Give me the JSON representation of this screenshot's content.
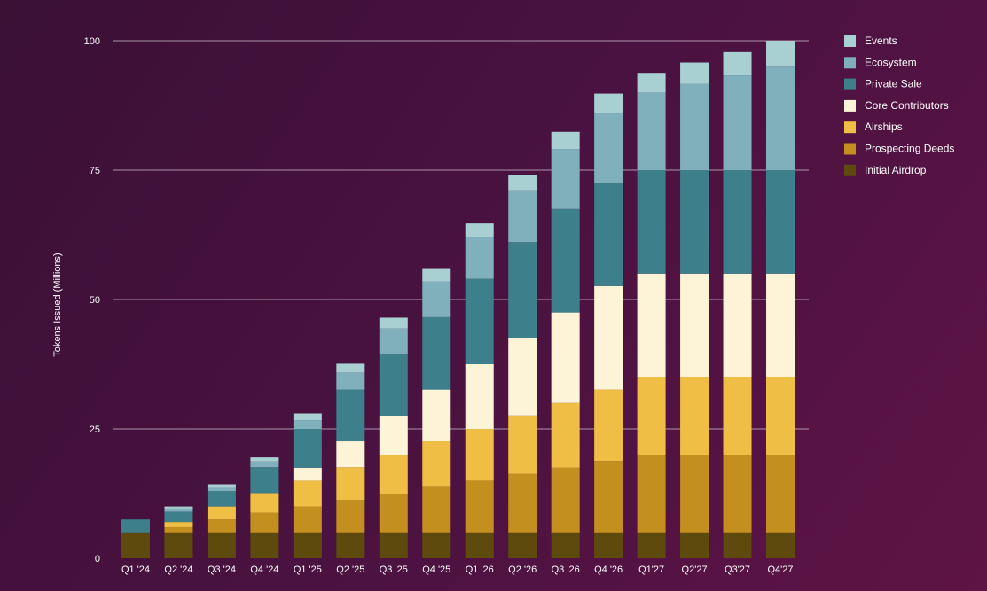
{
  "chart_data": {
    "type": "bar",
    "stacked": true,
    "ylabel": "Tokens Issued (Millions)",
    "xlabel": "",
    "ylim": [
      0,
      100
    ],
    "yticks": [
      0,
      25,
      50,
      75,
      100
    ],
    "grid": true,
    "legend_position": "top-right",
    "categories": [
      "Q1 '24",
      "Q2 '24",
      "Q3 '24",
      "Q4 '24",
      "Q1 '25",
      "Q2 '25",
      "Q3 '25",
      "Q4 '25",
      "Q1 '26",
      "Q2 '26",
      "Q3 '26",
      "Q4 '26",
      "Q1'27",
      "Q2'27",
      "Q3'27",
      "Q4'27"
    ],
    "series": [
      {
        "name": "Initial Airdrop",
        "color": "#5e4a0c",
        "values": [
          5,
          5,
          5,
          5,
          5,
          5,
          5,
          5,
          5,
          5,
          5,
          5,
          5,
          5,
          5,
          5
        ]
      },
      {
        "name": "Prospecting Deeds",
        "color": "#c3901f",
        "values": [
          0,
          1,
          2.5,
          3.8,
          5,
          6.3,
          7.5,
          8.8,
          10,
          11.3,
          12.5,
          13.8,
          15,
          15,
          15,
          15
        ]
      },
      {
        "name": "Airships",
        "color": "#efbf45",
        "values": [
          0,
          1,
          2.5,
          3.8,
          5,
          6.3,
          7.5,
          8.8,
          10,
          11.3,
          12.5,
          13.8,
          15,
          15,
          15,
          15
        ]
      },
      {
        "name": "Core Contributors",
        "color": "#fdf3d6",
        "values": [
          0,
          0,
          0,
          0,
          2.5,
          5,
          7.5,
          10,
          12.5,
          15,
          17.5,
          20,
          20,
          20,
          20,
          20
        ]
      },
      {
        "name": "Private Sale",
        "color": "#3d7f8b",
        "values": [
          2.5,
          2,
          3,
          5,
          7.5,
          10,
          12,
          14,
          16.5,
          18.5,
          20,
          20,
          20,
          20,
          20,
          20
        ]
      },
      {
        "name": "Ecosystem",
        "color": "#7fb0bc",
        "values": [
          0,
          0.6,
          0.6,
          1.1,
          1.7,
          3.3,
          4.9,
          6.9,
          8.1,
          10,
          11.6,
          13.5,
          15,
          16.7,
          18.3,
          20
        ]
      },
      {
        "name": "Events",
        "color": "#a8cfd2",
        "values": [
          0,
          0.4,
          0.7,
          0.8,
          1.3,
          1.7,
          2.1,
          2.4,
          2.6,
          2.9,
          3.3,
          3.7,
          3.8,
          4.1,
          4.5,
          5
        ]
      }
    ],
    "legend_order": [
      "Events",
      "Ecosystem",
      "Private Sale",
      "Core Contributors",
      "Airships",
      "Prospecting Deeds",
      "Initial Airdrop"
    ]
  }
}
